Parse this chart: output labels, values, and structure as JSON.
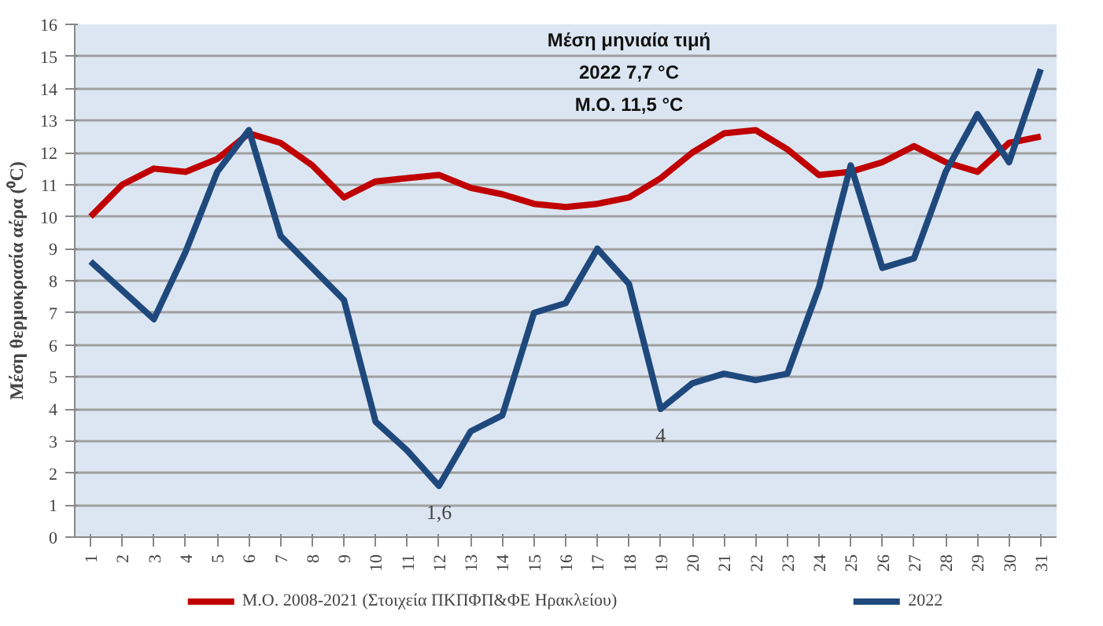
{
  "chart_data": {
    "type": "line",
    "ylabel": "Μέση θερμοκρασία αέρα (⁰C)",
    "categories": [
      "1",
      "2",
      "3",
      "4",
      "5",
      "6",
      "7",
      "8",
      "9",
      "10",
      "11",
      "12",
      "13",
      "14",
      "15",
      "16",
      "17",
      "18",
      "19",
      "20",
      "21",
      "22",
      "23",
      "24",
      "25",
      "26",
      "27",
      "28",
      "29",
      "30",
      "31"
    ],
    "series": [
      {
        "name": "Μ.Ο. 2008-2021 (Στοιχεία ΠΚΠΦΠ&ΦΕ Ηρακλείου)",
        "color": "#c00000",
        "values": [
          10,
          11,
          11.5,
          11.4,
          11.8,
          12.6,
          12.3,
          11.6,
          10.6,
          11.1,
          11.2,
          11.3,
          10.9,
          10.7,
          10.4,
          10.3,
          10.4,
          10.6,
          11.2,
          12.0,
          12.6,
          12.7,
          12.1,
          11.3,
          11.4,
          11.7,
          12.2,
          11.7,
          11.4,
          12.3,
          12.5
        ]
      },
      {
        "name": "2022",
        "color": "#1f497d",
        "values": [
          8.6,
          7.7,
          6.8,
          8.9,
          11.4,
          12.7,
          9.4,
          8.4,
          7.4,
          3.6,
          2.7,
          1.6,
          3.3,
          3.8,
          7.0,
          7.3,
          9.0,
          7.9,
          4.0,
          4.8,
          5.1,
          4.9,
          5.1,
          7.8,
          11.6,
          8.4,
          8.7,
          11.4,
          13.2,
          11.7,
          14.6
        ]
      }
    ],
    "annotations": [
      "Μέση μηνιαία τιμή",
      "2022 7,7 °C",
      "Μ.Ο. 11,5 °C",
      {
        "text": "1,6",
        "x": "12",
        "y": 1.6
      },
      {
        "text": "4",
        "x": "19",
        "y": 4
      }
    ],
    "ylim": [
      0,
      16
    ],
    "yticks": [
      0,
      1,
      2,
      3,
      4,
      5,
      6,
      7,
      8,
      9,
      10,
      11,
      12,
      13,
      14,
      15,
      16
    ],
    "grid": "y",
    "legend": "bottom",
    "marker": "none",
    "line_style": "solid"
  }
}
